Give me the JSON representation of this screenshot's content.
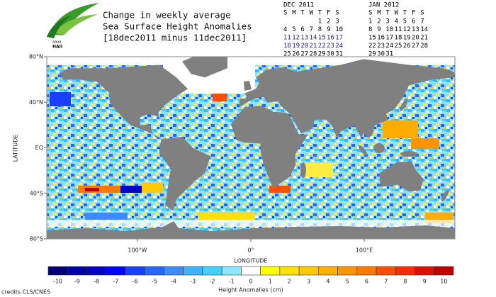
{
  "logo_text": [
    "aaun",
    "HAII"
  ],
  "title_lines": [
    "Change in weekly average",
    "Sea Surface Height Anomalies",
    "[18dec2011 minus 11dec2011]"
  ],
  "calendars": [
    {
      "title": "DEC 2011",
      "weekdays": [
        "S",
        "M",
        "T",
        "W",
        "T",
        "F",
        "S"
      ],
      "weeks": [
        [
          1,
          2,
          3
        ],
        [
          4,
          5,
          6,
          7,
          8,
          9,
          10
        ],
        [
          11,
          12,
          13,
          14,
          15,
          16,
          17
        ],
        [
          18,
          19,
          20,
          21,
          22,
          23,
          24
        ],
        [
          25,
          26,
          27,
          28,
          29,
          30,
          31
        ]
      ],
      "week_colors": [
        "#000000",
        "#000000",
        "#1a1aa0",
        "#1a1aa0",
        "#000000"
      ]
    },
    {
      "title": "JAN 2012",
      "weekdays": [
        "S",
        "M",
        "T",
        "W",
        "T",
        "F",
        "S"
      ],
      "weeks": [
        [
          1,
          2,
          3,
          4,
          5,
          6,
          7
        ],
        [
          8,
          9,
          10,
          11,
          12,
          13,
          14
        ],
        [
          15,
          16,
          17,
          18,
          19,
          20,
          21
        ],
        [
          22,
          23,
          24,
          25,
          26,
          27,
          28
        ],
        [
          29,
          30,
          31
        ]
      ]
    }
  ],
  "map": {
    "xlabel": "LONGITUDE",
    "ylabel": "LATITUDE",
    "xlim": [
      -180,
      180
    ],
    "ylim": [
      -80,
      80
    ],
    "xticks": [
      {
        "value": -100,
        "label": "100°W"
      },
      {
        "value": 0,
        "label": "0°"
      },
      {
        "value": 100,
        "label": "100°E"
      }
    ],
    "yticks": [
      {
        "value": 80,
        "label": "80°N"
      },
      {
        "value": 40,
        "label": "40°N"
      },
      {
        "value": 0,
        "label": "EQ"
      },
      {
        "value": -40,
        "label": "40°S"
      },
      {
        "value": -80,
        "label": "80°S"
      }
    ]
  },
  "colorbar": {
    "title": "Height Anomalies (cm)",
    "ticks": [
      -10,
      -9,
      -8,
      -7,
      -6,
      -5,
      -4,
      -3,
      -2,
      -1,
      0,
      1,
      2,
      3,
      4,
      5,
      6,
      7,
      8,
      9,
      10
    ],
    "colors": [
      "#00007a",
      "#0000a8",
      "#0000cc",
      "#0000ff",
      "#1a40ff",
      "#2864ff",
      "#3c8cff",
      "#3cb4ff",
      "#40d2ff",
      "#8ae8ff",
      "#ffffff",
      "#ffff00",
      "#ffe200",
      "#ffc800",
      "#ffae00",
      "#ff9400",
      "#ff7800",
      "#ff5000",
      "#ff2a00",
      "#e01000",
      "#c00000"
    ]
  },
  "credits": "credits CLS/CNES"
}
